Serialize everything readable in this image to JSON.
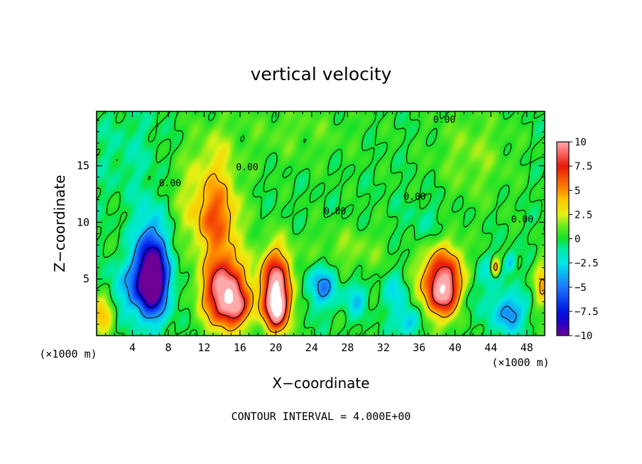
{
  "chart_data": {
    "type": "heatmap",
    "title": "vertical velocity",
    "xlabel": "X−coordinate",
    "ylabel": "Z−coordinate",
    "x_unit_left": "(×1000 m)",
    "x_unit_right": "(×1000 m)",
    "footer": "CONTOUR INTERVAL = 4.000E+00",
    "xlim": [
      0,
      50
    ],
    "ylim": [
      0,
      19.8
    ],
    "x_ticks": [
      4,
      8,
      12,
      16,
      20,
      24,
      28,
      32,
      36,
      40,
      44,
      48
    ],
    "y_ticks": [
      5,
      10,
      15
    ],
    "colorbar": {
      "min": -10,
      "max": 10,
      "ticks": [
        "10",
        "7.5",
        "5",
        "2.5",
        "0",
        "−2.5",
        "−5",
        "−7.5",
        "−10"
      ],
      "tick_values": [
        10,
        7.5,
        5,
        2.5,
        0,
        -2.5,
        -5,
        -7.5,
        -10
      ]
    },
    "contour_labels": [
      {
        "text": "0.00",
        "x": 38.8,
        "y": 18.8
      },
      {
        "text": "0.00",
        "x": 16.8,
        "y": 14.6
      },
      {
        "text": "0.00",
        "x": 8.2,
        "y": 13.2
      },
      {
        "text": "0.00",
        "x": 26.6,
        "y": 10.7
      },
      {
        "text": "0.00",
        "x": 35.5,
        "y": 12.0
      },
      {
        "text": "0.00",
        "x": 47.5,
        "y": 10.0
      }
    ],
    "features": [
      {
        "x": 6.1,
        "z": 4.8,
        "w": -12.5,
        "sx": 1.3,
        "sz": 2.2
      },
      {
        "x": 6.1,
        "z": 8.5,
        "w": -3.5,
        "sx": 1.3,
        "sz": 2.5
      },
      {
        "x": 3.0,
        "z": 4.0,
        "w": -2.5,
        "sx": 1.5,
        "sz": 1.6
      },
      {
        "x": 0.6,
        "z": 2.0,
        "w": 4.5,
        "sx": 1.0,
        "sz": 1.2
      },
      {
        "x": 13.4,
        "z": 10.2,
        "w": 5.2,
        "sx": 1.8,
        "sz": 2.2
      },
      {
        "x": 13.5,
        "z": 15.0,
        "w": 2.0,
        "sx": 1.6,
        "sz": 2.5
      },
      {
        "x": 14.3,
        "z": 3.9,
        "w": 11.0,
        "sx": 1.7,
        "sz": 2.2
      },
      {
        "x": 15.8,
        "z": 2.4,
        "w": 4.0,
        "sx": 1.2,
        "sz": 1.0
      },
      {
        "x": 20.0,
        "z": 4.3,
        "w": 10.5,
        "sx": 1.2,
        "sz": 2.3
      },
      {
        "x": 20.2,
        "z": 2.2,
        "w": 6.0,
        "sx": 0.9,
        "sz": 1.2
      },
      {
        "x": 25.2,
        "z": 4.4,
        "w": -4.5,
        "sx": 1.2,
        "sz": 1.3
      },
      {
        "x": 29.0,
        "z": 3.2,
        "w": -3.0,
        "sx": 0.8,
        "sz": 1.0
      },
      {
        "x": 33.5,
        "z": 3.8,
        "w": -2.5,
        "sx": 1.0,
        "sz": 1.3
      },
      {
        "x": 34.8,
        "z": 1.2,
        "w": -3.5,
        "sx": 1.0,
        "sz": 0.9
      },
      {
        "x": 38.6,
        "z": 4.8,
        "w": 9.5,
        "sx": 1.8,
        "sz": 2.2
      },
      {
        "x": 39.0,
        "z": 3.6,
        "w": 3.0,
        "sx": 1.0,
        "sz": 1.0
      },
      {
        "x": 41.5,
        "z": 3.0,
        "w": -2.0,
        "sx": 1.0,
        "sz": 1.5
      },
      {
        "x": 43.5,
        "z": 5.5,
        "w": -2.0,
        "sx": 1.3,
        "sz": 1.2
      },
      {
        "x": 44.5,
        "z": 6.0,
        "w": 6.5,
        "sx": 0.35,
        "sz": 0.6
      },
      {
        "x": 46.0,
        "z": 2.0,
        "w": -5.0,
        "sx": 1.2,
        "sz": 1.2
      },
      {
        "x": 46.2,
        "z": 6.4,
        "w": -3.5,
        "sx": 0.4,
        "sz": 0.6
      },
      {
        "x": 49.7,
        "z": 4.5,
        "w": 4.0,
        "sx": 0.6,
        "sz": 1.5
      },
      {
        "x": 10.5,
        "z": 12.5,
        "w": 1.5,
        "sx": 2.5,
        "sz": 3.5
      },
      {
        "x": 42.0,
        "z": 16.0,
        "w": 1.5,
        "sx": 3.0,
        "sz": 3.0
      },
      {
        "x": 28.0,
        "z": 7.5,
        "w": 1.5,
        "sx": 3.5,
        "sz": 1.5
      },
      {
        "x": 22.0,
        "z": 18.0,
        "w": 1.0,
        "sx": 5.0,
        "sz": 2.0
      },
      {
        "x": 4.0,
        "z": 16.0,
        "w": -1.0,
        "sx": 3.0,
        "sz": 3.0
      },
      {
        "x": 37.0,
        "z": 9.0,
        "w": -1.2,
        "sx": 2.0,
        "sz": 2.0
      }
    ]
  }
}
